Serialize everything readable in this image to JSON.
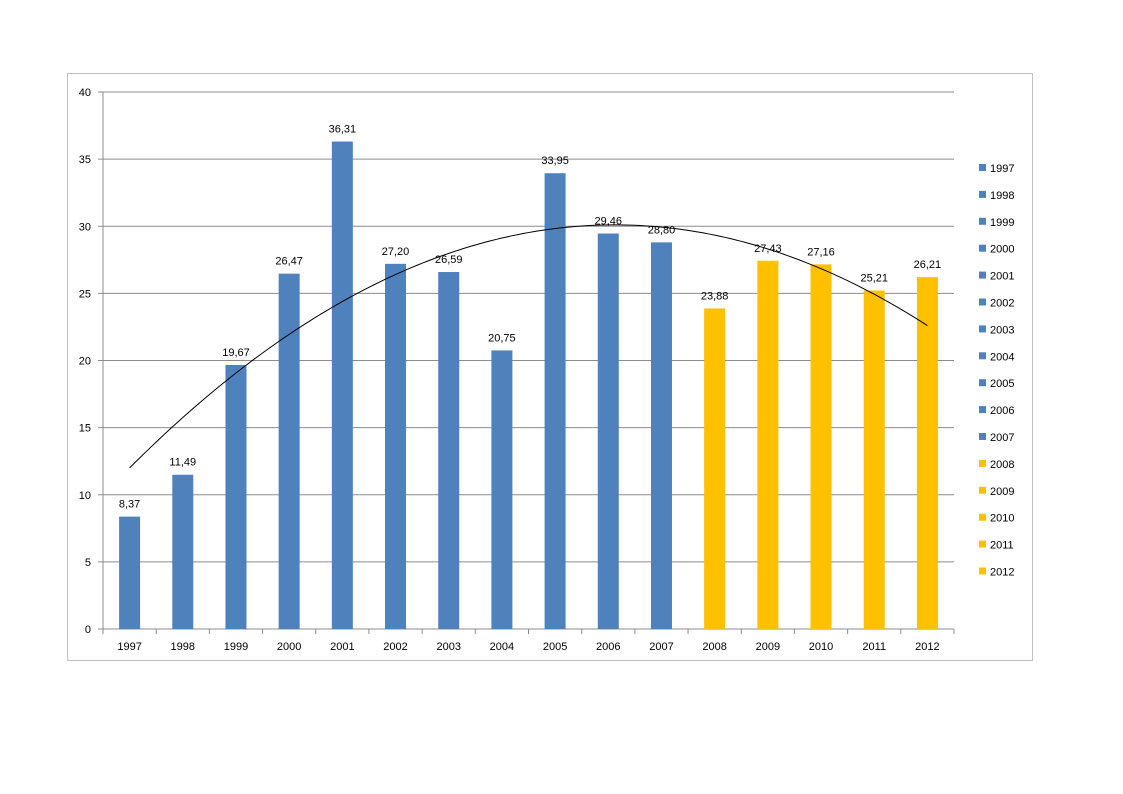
{
  "chart_data": {
    "type": "bar",
    "categories": [
      "1997",
      "1998",
      "1999",
      "2000",
      "2001",
      "2002",
      "2003",
      "2004",
      "2005",
      "2006",
      "2007",
      "2008",
      "2009",
      "2010",
      "2011",
      "2012"
    ],
    "values": [
      8.37,
      11.49,
      19.67,
      26.47,
      36.31,
      27.2,
      26.59,
      20.75,
      33.95,
      29.46,
      28.8,
      23.88,
      27.43,
      27.16,
      25.21,
      26.21
    ],
    "value_labels": [
      "8,37",
      "11,49",
      "19,67",
      "26,47",
      "36,31",
      "27,20",
      "26,59",
      "20,75",
      "33,95",
      "29,46",
      "28,80",
      "23,88",
      "27,43",
      "27,16",
      "25,21",
      "26,21"
    ],
    "colors": [
      "#4F81BD",
      "#4F81BD",
      "#4F81BD",
      "#4F81BD",
      "#4F81BD",
      "#4F81BD",
      "#4F81BD",
      "#4F81BD",
      "#4F81BD",
      "#4F81BD",
      "#4F81BD",
      "#FFC000",
      "#FFC000",
      "#FFC000",
      "#FFC000",
      "#FFC000"
    ],
    "ylim": [
      0,
      40
    ],
    "yticks": [
      0,
      5,
      10,
      15,
      20,
      25,
      30,
      35,
      40
    ],
    "grid": true,
    "legend": "right",
    "legend_entries": [
      "1997",
      "1998",
      "1999",
      "2000",
      "2001",
      "2002",
      "2003",
      "2004",
      "2005",
      "2006",
      "2007",
      "2008",
      "2009",
      "2010",
      "2011",
      "2012"
    ],
    "trendline": {
      "type": "polynomial",
      "order": 2,
      "start": 12.0,
      "peak": 30.1,
      "end": 22.6
    },
    "title": "",
    "xlabel": "",
    "ylabel": ""
  }
}
